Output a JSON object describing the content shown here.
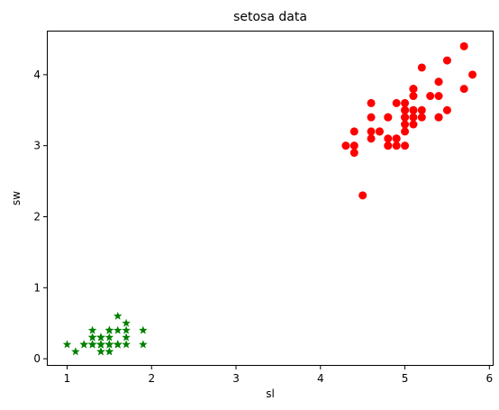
{
  "chart_data": {
    "type": "scatter",
    "title": "setosa data",
    "xlabel": "sl",
    "ylabel": "sw",
    "xlim": [
      0.76,
      6.05
    ],
    "ylim": [
      -0.1,
      4.62
    ],
    "xticks": [
      1,
      2,
      3,
      4,
      5,
      6
    ],
    "yticks": [
      0,
      1,
      2,
      3,
      4
    ],
    "grid": false,
    "series": [
      {
        "color": "#ff0000",
        "marker": "circle",
        "points": [
          [
            5.1,
            3.5
          ],
          [
            4.9,
            3.0
          ],
          [
            4.7,
            3.2
          ],
          [
            4.6,
            3.1
          ],
          [
            5.0,
            3.6
          ],
          [
            5.4,
            3.9
          ],
          [
            4.6,
            3.4
          ],
          [
            5.0,
            3.4
          ],
          [
            4.4,
            2.9
          ],
          [
            4.9,
            3.1
          ],
          [
            5.4,
            3.7
          ],
          [
            4.8,
            3.4
          ],
          [
            4.8,
            3.0
          ],
          [
            4.3,
            3.0
          ],
          [
            5.8,
            4.0
          ],
          [
            5.7,
            4.4
          ],
          [
            5.4,
            3.9
          ],
          [
            5.1,
            3.5
          ],
          [
            5.7,
            3.8
          ],
          [
            5.1,
            3.8
          ],
          [
            5.4,
            3.4
          ],
          [
            5.1,
            3.7
          ],
          [
            4.6,
            3.6
          ],
          [
            5.1,
            3.3
          ],
          [
            4.8,
            3.4
          ],
          [
            5.0,
            3.0
          ],
          [
            5.0,
            3.4
          ],
          [
            5.2,
            3.5
          ],
          [
            5.2,
            3.4
          ],
          [
            4.7,
            3.2
          ],
          [
            4.8,
            3.1
          ],
          [
            5.4,
            3.4
          ],
          [
            5.2,
            4.1
          ],
          [
            5.5,
            4.2
          ],
          [
            4.9,
            3.1
          ],
          [
            5.0,
            3.2
          ],
          [
            5.5,
            3.5
          ],
          [
            4.9,
            3.6
          ],
          [
            4.4,
            3.0
          ],
          [
            5.1,
            3.4
          ],
          [
            5.0,
            3.5
          ],
          [
            4.5,
            2.3
          ],
          [
            4.4,
            3.2
          ],
          [
            5.0,
            3.5
          ],
          [
            5.1,
            3.8
          ],
          [
            4.8,
            3.0
          ],
          [
            5.1,
            3.8
          ],
          [
            4.6,
            3.2
          ],
          [
            5.3,
            3.7
          ],
          [
            5.0,
            3.3
          ]
        ]
      },
      {
        "color": "#008000",
        "marker": "star",
        "points": [
          [
            1.4,
            0.2
          ],
          [
            1.4,
            0.2
          ],
          [
            1.3,
            0.2
          ],
          [
            1.5,
            0.2
          ],
          [
            1.4,
            0.2
          ],
          [
            1.7,
            0.4
          ],
          [
            1.4,
            0.3
          ],
          [
            1.5,
            0.2
          ],
          [
            1.4,
            0.2
          ],
          [
            1.5,
            0.1
          ],
          [
            1.5,
            0.2
          ],
          [
            1.6,
            0.2
          ],
          [
            1.4,
            0.1
          ],
          [
            1.1,
            0.1
          ],
          [
            1.2,
            0.2
          ],
          [
            1.5,
            0.4
          ],
          [
            1.3,
            0.4
          ],
          [
            1.4,
            0.3
          ],
          [
            1.7,
            0.3
          ],
          [
            1.5,
            0.3
          ],
          [
            1.7,
            0.2
          ],
          [
            1.5,
            0.4
          ],
          [
            1.0,
            0.2
          ],
          [
            1.7,
            0.5
          ],
          [
            1.9,
            0.2
          ],
          [
            1.6,
            0.2
          ],
          [
            1.6,
            0.4
          ],
          [
            1.5,
            0.2
          ],
          [
            1.4,
            0.2
          ],
          [
            1.6,
            0.2
          ],
          [
            1.6,
            0.2
          ],
          [
            1.5,
            0.4
          ],
          [
            1.5,
            0.1
          ],
          [
            1.4,
            0.2
          ],
          [
            1.5,
            0.2
          ],
          [
            1.2,
            0.2
          ],
          [
            1.3,
            0.2
          ],
          [
            1.4,
            0.1
          ],
          [
            1.3,
            0.2
          ],
          [
            1.5,
            0.2
          ],
          [
            1.3,
            0.3
          ],
          [
            1.3,
            0.3
          ],
          [
            1.3,
            0.2
          ],
          [
            1.6,
            0.6
          ],
          [
            1.9,
            0.4
          ],
          [
            1.4,
            0.3
          ],
          [
            1.6,
            0.2
          ],
          [
            1.4,
            0.2
          ],
          [
            1.5,
            0.2
          ],
          [
            1.4,
            0.2
          ]
        ]
      }
    ]
  }
}
